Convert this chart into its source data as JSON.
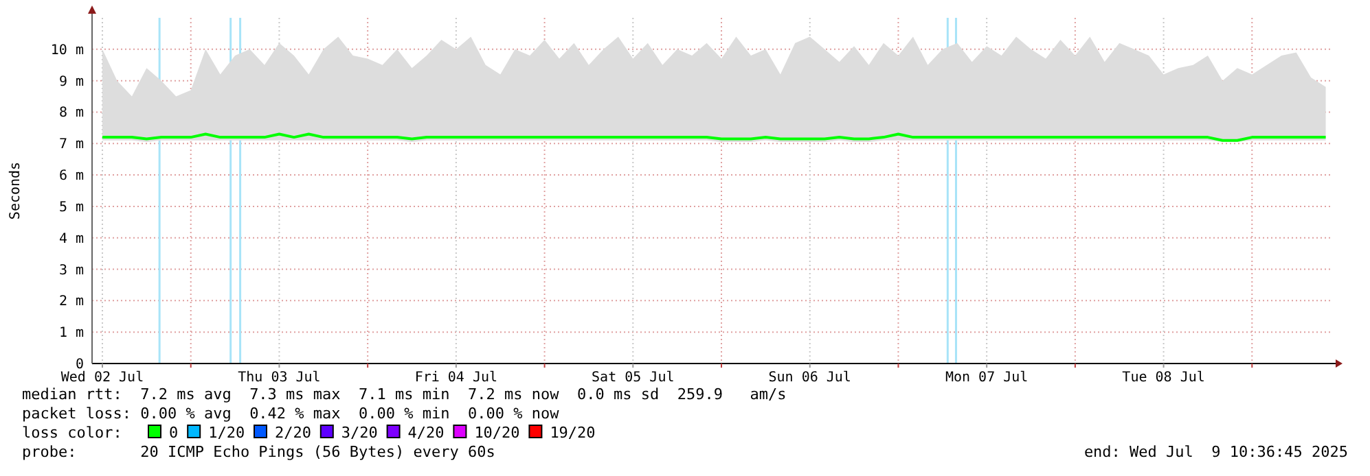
{
  "chart_data": {
    "type": "line",
    "ylabel": "Seconds",
    "xlim": [
      "2025-07-02T10:36",
      "2025-07-09T10:36"
    ],
    "xticks": [
      {
        "value": "2025-07-02T12:00",
        "label": "Wed 02 Jul"
      },
      {
        "value": "2025-07-03T00:00",
        "label": null
      },
      {
        "value": "2025-07-03T12:00",
        "label": "Thu 03 Jul"
      },
      {
        "value": "2025-07-04T00:00",
        "label": null
      },
      {
        "value": "2025-07-04T12:00",
        "label": "Fri 04 Jul"
      },
      {
        "value": "2025-07-05T00:00",
        "label": null
      },
      {
        "value": "2025-07-05T12:00",
        "label": "Sat 05 Jul"
      },
      {
        "value": "2025-07-06T00:00",
        "label": null
      },
      {
        "value": "2025-07-06T12:00",
        "label": "Sun 06 Jul"
      },
      {
        "value": "2025-07-07T00:00",
        "label": null
      },
      {
        "value": "2025-07-07T12:00",
        "label": "Mon 07 Jul"
      },
      {
        "value": "2025-07-08T00:00",
        "label": null
      },
      {
        "value": "2025-07-08T12:00",
        "label": "Tue 08 Jul"
      },
      {
        "value": "2025-07-09T00:00",
        "label": null
      }
    ],
    "ylim": [
      0,
      11
    ],
    "yticks": [
      {
        "value": 0,
        "label": "0"
      },
      {
        "value": 1,
        "label": "1 m"
      },
      {
        "value": 2,
        "label": "2 m"
      },
      {
        "value": 3,
        "label": "3 m"
      },
      {
        "value": 4,
        "label": "4 m"
      },
      {
        "value": 5,
        "label": "5 m"
      },
      {
        "value": 6,
        "label": "6 m"
      },
      {
        "value": 7,
        "label": "7 m"
      },
      {
        "value": 8,
        "label": "8 m"
      },
      {
        "value": 9,
        "label": "9 m"
      },
      {
        "value": 10,
        "label": "10 m"
      }
    ],
    "grid": true,
    "legend": "bottom",
    "legend_title": "loss color:",
    "marker": "none",
    "line_style": "solid",
    "x": [
      "2025-07-02T12:00",
      "2025-07-02T14:00",
      "2025-07-02T16:00",
      "2025-07-02T18:00",
      "2025-07-02T20:00",
      "2025-07-02T22:00",
      "2025-07-03T00:00",
      "2025-07-03T02:00",
      "2025-07-03T04:00",
      "2025-07-03T06:00",
      "2025-07-03T08:00",
      "2025-07-03T10:00",
      "2025-07-03T12:00",
      "2025-07-03T14:00",
      "2025-07-03T16:00",
      "2025-07-03T18:00",
      "2025-07-03T20:00",
      "2025-07-03T22:00",
      "2025-07-04T00:00",
      "2025-07-04T02:00",
      "2025-07-04T04:00",
      "2025-07-04T06:00",
      "2025-07-04T08:00",
      "2025-07-04T10:00",
      "2025-07-04T12:00",
      "2025-07-04T14:00",
      "2025-07-04T16:00",
      "2025-07-04T18:00",
      "2025-07-04T20:00",
      "2025-07-04T22:00",
      "2025-07-05T00:00",
      "2025-07-05T02:00",
      "2025-07-05T04:00",
      "2025-07-05T06:00",
      "2025-07-05T08:00",
      "2025-07-05T10:00",
      "2025-07-05T12:00",
      "2025-07-05T14:00",
      "2025-07-05T16:00",
      "2025-07-05T18:00",
      "2025-07-05T20:00",
      "2025-07-05T22:00",
      "2025-07-06T00:00",
      "2025-07-06T02:00",
      "2025-07-06T04:00",
      "2025-07-06T06:00",
      "2025-07-06T08:00",
      "2025-07-06T10:00",
      "2025-07-06T12:00",
      "2025-07-06T14:00",
      "2025-07-06T16:00",
      "2025-07-06T18:00",
      "2025-07-06T20:00",
      "2025-07-06T22:00",
      "2025-07-07T00:00",
      "2025-07-07T02:00",
      "2025-07-07T04:00",
      "2025-07-07T06:00",
      "2025-07-07T08:00",
      "2025-07-07T10:00",
      "2025-07-07T12:00",
      "2025-07-07T14:00",
      "2025-07-07T16:00",
      "2025-07-07T18:00",
      "2025-07-07T20:00",
      "2025-07-07T22:00",
      "2025-07-08T00:00",
      "2025-07-08T02:00",
      "2025-07-08T04:00",
      "2025-07-08T06:00",
      "2025-07-08T08:00",
      "2025-07-08T10:00",
      "2025-07-08T12:00",
      "2025-07-08T14:00",
      "2025-07-08T16:00",
      "2025-07-08T18:00",
      "2025-07-08T20:00",
      "2025-07-08T22:00",
      "2025-07-09T00:00",
      "2025-07-09T02:00",
      "2025-07-09T04:00",
      "2025-07-09T06:00",
      "2025-07-09T08:00",
      "2025-07-09T10:00"
    ],
    "series": [
      {
        "name": "0",
        "color": "#00ff00",
        "values": [
          7.2,
          7.2,
          7.2,
          7.15,
          7.2,
          7.2,
          7.2,
          7.3,
          7.2,
          7.2,
          7.2,
          7.2,
          7.3,
          7.2,
          7.3,
          7.2,
          7.2,
          7.2,
          7.2,
          7.2,
          7.2,
          7.15,
          7.2,
          7.2,
          7.2,
          7.2,
          7.2,
          7.2,
          7.2,
          7.2,
          7.2,
          7.2,
          7.2,
          7.2,
          7.2,
          7.2,
          7.2,
          7.2,
          7.2,
          7.2,
          7.2,
          7.2,
          7.15,
          7.15,
          7.15,
          7.2,
          7.15,
          7.15,
          7.15,
          7.15,
          7.2,
          7.15,
          7.15,
          7.2,
          7.3,
          7.2,
          7.2,
          7.2,
          7.2,
          7.2,
          7.2,
          7.2,
          7.2,
          7.2,
          7.2,
          7.2,
          7.2,
          7.2,
          7.2,
          7.2,
          7.2,
          7.2,
          7.2,
          7.2,
          7.2,
          7.2,
          7.1,
          7.1,
          7.2,
          7.2,
          7.2,
          7.2,
          7.2,
          7.2
        ],
        "lower": [
          7.1,
          7.1,
          7.1,
          7.05,
          7.1,
          7.1,
          7.1,
          7.1,
          7.1,
          7.1,
          7.1,
          7.1,
          7.1,
          7.1,
          7.1,
          7.1,
          7.1,
          7.1,
          7.1,
          7.1,
          7.1,
          7.05,
          7.1,
          7.1,
          7.1,
          7.1,
          7.1,
          7.1,
          7.1,
          7.1,
          7.1,
          7.1,
          7.1,
          7.1,
          7.1,
          7.1,
          7.1,
          7.1,
          7.1,
          7.1,
          7.1,
          7.1,
          7.05,
          7.05,
          7.05,
          7.1,
          7.05,
          7.05,
          7.05,
          7.05,
          7.1,
          7.05,
          7.05,
          7.1,
          7.1,
          7.1,
          7.1,
          7.1,
          7.1,
          7.1,
          7.1,
          7.1,
          7.1,
          7.1,
          7.1,
          7.1,
          7.1,
          7.1,
          7.1,
          7.1,
          7.1,
          7.1,
          7.1,
          7.1,
          7.1,
          7.1,
          7.05,
          7.05,
          7.1,
          7.1,
          7.1,
          7.1,
          7.1,
          7.1
        ],
        "upper": [
          10.0,
          9.0,
          8.5,
          9.4,
          9.0,
          8.5,
          8.7,
          10.0,
          9.2,
          9.8,
          10.0,
          9.5,
          10.2,
          9.8,
          9.2,
          10.0,
          10.4,
          9.8,
          9.7,
          9.5,
          10.0,
          9.4,
          9.8,
          10.3,
          10.0,
          10.4,
          9.5,
          9.2,
          10.0,
          9.8,
          10.3,
          9.7,
          10.2,
          9.5,
          10.0,
          10.4,
          9.7,
          10.2,
          9.5,
          10.0,
          9.8,
          10.2,
          9.7,
          10.4,
          9.8,
          10.0,
          9.2,
          10.2,
          10.4,
          10.0,
          9.6,
          10.1,
          9.5,
          10.2,
          9.8,
          10.4,
          9.5,
          10.0,
          10.2,
          9.6,
          10.1,
          9.8,
          10.4,
          10.0,
          9.7,
          10.3,
          9.8,
          10.4,
          9.6,
          10.2,
          10.0,
          9.8,
          9.2,
          9.4,
          9.5,
          9.8,
          9.0,
          9.4,
          9.2,
          9.5,
          9.8,
          9.9,
          9.1,
          8.8
        ]
      },
      {
        "name": "1/20",
        "color": "#00b8ff",
        "values": [
          null,
          null,
          null,
          null,
          null,
          null,
          null,
          null,
          null,
          null,
          null,
          null,
          null,
          null,
          null,
          null,
          null,
          null,
          null,
          null,
          null,
          null,
          null,
          null,
          null,
          null,
          null,
          null,
          null,
          null,
          null,
          null,
          null,
          null,
          null,
          null,
          null,
          null,
          null,
          null,
          null,
          null,
          null,
          null,
          null,
          null,
          null,
          null,
          null,
          null,
          null,
          null,
          null,
          null,
          null,
          null,
          null,
          null,
          null,
          null,
          null,
          null,
          null,
          null,
          null,
          null,
          null,
          null,
          null,
          null,
          null,
          null,
          null,
          null,
          null,
          null,
          null,
          null,
          null,
          null,
          null,
          null,
          null,
          null
        ]
      },
      {
        "name": "2/20",
        "color": "#0059ff",
        "values": [
          null,
          null,
          null,
          null,
          null,
          null,
          null,
          null,
          null,
          null,
          null,
          null,
          null,
          null,
          null,
          null,
          null,
          null,
          null,
          null,
          null,
          null,
          null,
          null,
          null,
          null,
          null,
          null,
          null,
          null,
          null,
          null,
          null,
          null,
          null,
          null,
          null,
          null,
          null,
          null,
          null,
          null,
          null,
          null,
          null,
          null,
          null,
          null,
          null,
          null,
          null,
          null,
          null,
          null,
          null,
          null,
          null,
          null,
          null,
          null,
          null,
          null,
          null,
          null,
          null,
          null,
          null,
          null,
          null,
          null,
          null,
          null,
          null,
          null,
          null,
          null,
          null,
          null,
          null,
          null,
          null,
          null,
          null,
          null
        ]
      },
      {
        "name": "3/20",
        "color": "#5e00ff",
        "values": [
          null,
          null,
          null,
          null,
          null,
          null,
          null,
          null,
          null,
          null,
          null,
          null,
          null,
          null,
          null,
          null,
          null,
          null,
          null,
          null,
          null,
          null,
          null,
          null,
          null,
          null,
          null,
          null,
          null,
          null,
          null,
          null,
          null,
          null,
          null,
          null,
          null,
          null,
          null,
          null,
          null,
          null,
          null,
          null,
          null,
          null,
          null,
          null,
          null,
          null,
          null,
          null,
          null,
          null,
          null,
          null,
          null,
          null,
          null,
          null,
          null,
          null,
          null,
          null,
          null,
          null,
          null,
          null,
          null,
          null,
          null,
          null,
          null,
          null,
          null,
          null,
          null,
          null,
          null,
          null,
          null,
          null,
          null,
          null
        ]
      },
      {
        "name": "4/20",
        "color": "#7e00ff",
        "values": [
          null,
          null,
          null,
          null,
          null,
          null,
          null,
          null,
          null,
          null,
          null,
          null,
          null,
          null,
          null,
          null,
          null,
          null,
          null,
          null,
          null,
          null,
          null,
          null,
          null,
          null,
          null,
          null,
          null,
          null,
          null,
          null,
          null,
          null,
          null,
          null,
          null,
          null,
          null,
          null,
          null,
          null,
          null,
          null,
          null,
          null,
          null,
          null,
          null,
          null,
          null,
          null,
          null,
          null,
          null,
          null,
          null,
          null,
          null,
          null,
          null,
          null,
          null,
          null,
          null,
          null,
          null,
          null,
          null,
          null,
          null,
          null,
          null,
          null,
          null,
          null,
          null,
          null,
          null,
          null,
          null,
          null,
          null,
          null
        ]
      },
      {
        "name": "10/20",
        "color": "#dd00ff",
        "values": [
          null,
          null,
          null,
          null,
          null,
          null,
          null,
          null,
          null,
          null,
          null,
          null,
          null,
          null,
          null,
          null,
          null,
          null,
          null,
          null,
          null,
          null,
          null,
          null,
          null,
          null,
          null,
          null,
          null,
          null,
          null,
          null,
          null,
          null,
          null,
          null,
          null,
          null,
          null,
          null,
          null,
          null,
          null,
          null,
          null,
          null,
          null,
          null,
          null,
          null,
          null,
          null,
          null,
          null,
          null,
          null,
          null,
          null,
          null,
          null,
          null,
          null,
          null,
          null,
          null,
          null,
          null,
          null,
          null,
          null,
          null,
          null,
          null,
          null,
          null,
          null,
          null,
          null,
          null,
          null,
          null,
          null,
          null,
          null
        ]
      },
      {
        "name": "19/20",
        "color": "#ff0000",
        "values": [
          null,
          null,
          null,
          null,
          null,
          null,
          null,
          null,
          null,
          null,
          null,
          null,
          null,
          null,
          null,
          null,
          null,
          null,
          null,
          null,
          null,
          null,
          null,
          null,
          null,
          null,
          null,
          null,
          null,
          null,
          null,
          null,
          null,
          null,
          null,
          null,
          null,
          null,
          null,
          null,
          null,
          null,
          null,
          null,
          null,
          null,
          null,
          null,
          null,
          null,
          null,
          null,
          null,
          null,
          null,
          null,
          null,
          null,
          null,
          null,
          null,
          null,
          null,
          null,
          null,
          null,
          null,
          null,
          null,
          null,
          null,
          null,
          null,
          null,
          null,
          null,
          null,
          null,
          null,
          null,
          null,
          null,
          null,
          null
        ]
      }
    ],
    "ref_lines": [
      {
        "axis": "x",
        "value": "2025-07-02T19:45",
        "color": "#a8e4f8"
      },
      {
        "axis": "x",
        "value": "2025-07-03T05:24",
        "color": "#a8e4f8"
      },
      {
        "axis": "x",
        "value": "2025-07-03T06:42",
        "color": "#a8e4f8"
      },
      {
        "axis": "x",
        "value": "2025-07-07T06:42",
        "color": "#a8e4f8"
      },
      {
        "axis": "x",
        "value": "2025-07-07T07:50",
        "color": "#a8e4f8"
      }
    ],
    "annotations": [
      "median rtt:  7.2 ms avg  7.3 ms max  7.1 ms min  7.2 ms now  0.0 ms sd  259.9   am/s",
      "packet loss: 0.00 % avg  0.42 % max  0.00 % min  0.00 % now",
      "probe:       20 ICMP Echo Pings (56 Bytes) every 60s",
      "end: Wed Jul  9 10:36:45 2025"
    ]
  }
}
